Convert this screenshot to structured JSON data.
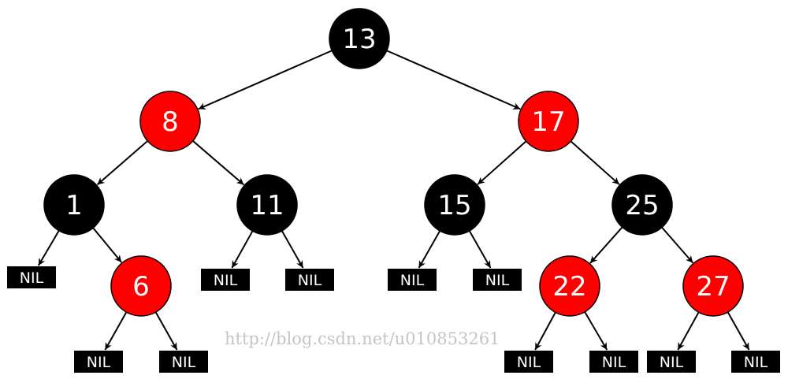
{
  "diagram": {
    "colors": {
      "red": "#ff0000",
      "black": "#000000",
      "text": "#ffffff"
    },
    "nodes": [
      {
        "id": "n13",
        "label": "13",
        "color": "black",
        "parent": null
      },
      {
        "id": "n8",
        "label": "8",
        "color": "red",
        "parent": "n13"
      },
      {
        "id": "n17",
        "label": "17",
        "color": "red",
        "parent": "n13"
      },
      {
        "id": "n1",
        "label": "1",
        "color": "black",
        "parent": "n8"
      },
      {
        "id": "n11",
        "label": "11",
        "color": "black",
        "parent": "n8"
      },
      {
        "id": "n15",
        "label": "15",
        "color": "black",
        "parent": "n17"
      },
      {
        "id": "n25",
        "label": "25",
        "color": "black",
        "parent": "n17"
      },
      {
        "id": "n6",
        "label": "6",
        "color": "red",
        "parent": "n1"
      },
      {
        "id": "n22",
        "label": "22",
        "color": "red",
        "parent": "n25"
      },
      {
        "id": "n27",
        "label": "27",
        "color": "red",
        "parent": "n25"
      },
      {
        "id": "nil1",
        "label": "NIL",
        "color": "black",
        "parent": "n1",
        "leaf": true
      },
      {
        "id": "nil6a",
        "label": "NIL",
        "color": "black",
        "parent": "n6",
        "leaf": true
      },
      {
        "id": "nil6b",
        "label": "NIL",
        "color": "black",
        "parent": "n6",
        "leaf": true
      },
      {
        "id": "nil11a",
        "label": "NIL",
        "color": "black",
        "parent": "n11",
        "leaf": true
      },
      {
        "id": "nil11b",
        "label": "NIL",
        "color": "black",
        "parent": "n11",
        "leaf": true
      },
      {
        "id": "nil15a",
        "label": "NIL",
        "color": "black",
        "parent": "n15",
        "leaf": true
      },
      {
        "id": "nil15b",
        "label": "NIL",
        "color": "black",
        "parent": "n15",
        "leaf": true
      },
      {
        "id": "nil22a",
        "label": "NIL",
        "color": "black",
        "parent": "n22",
        "leaf": true
      },
      {
        "id": "nil22b",
        "label": "NIL",
        "color": "black",
        "parent": "n22",
        "leaf": true
      },
      {
        "id": "nil27a",
        "label": "NIL",
        "color": "black",
        "parent": "n27",
        "leaf": true
      },
      {
        "id": "nil27b",
        "label": "NIL",
        "color": "black",
        "parent": "n27",
        "leaf": true
      }
    ]
  },
  "watermark": "http://blog.csdn.net/u010853261"
}
